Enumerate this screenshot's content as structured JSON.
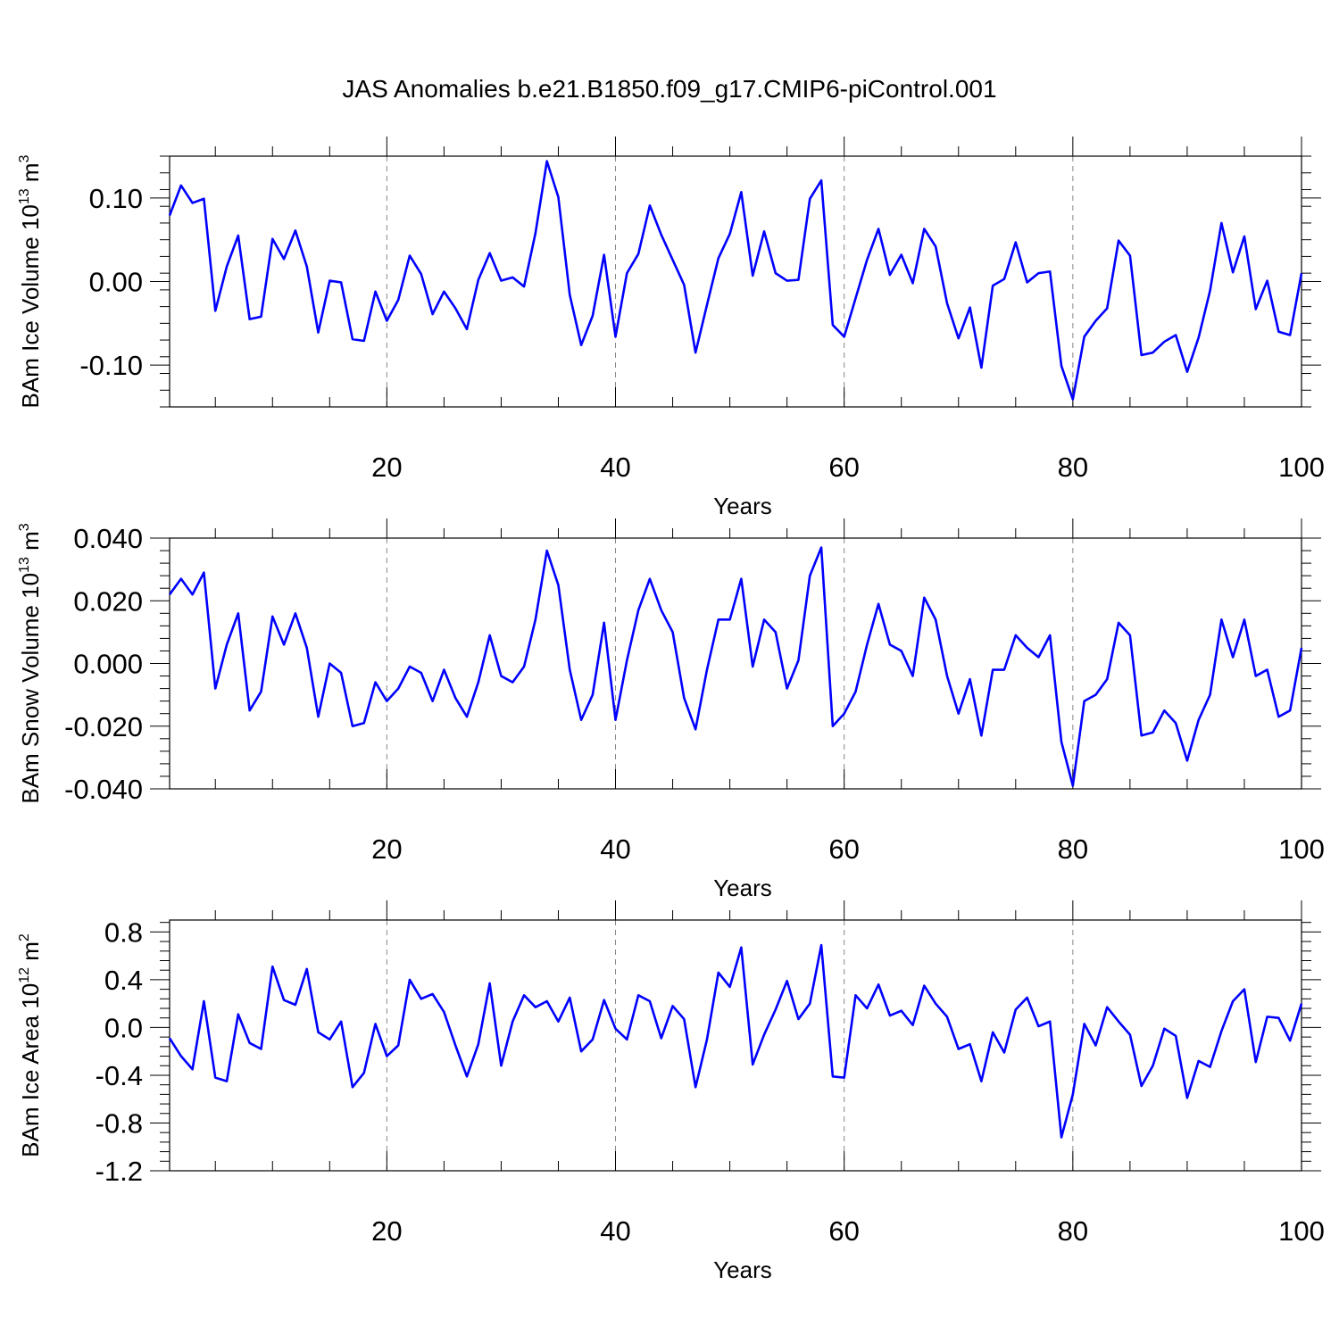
{
  "title": "JAS Anomalies b.e21.B1850.f09_g17.CMIP6-piControl.001",
  "style": {
    "line_color": "#0000ff",
    "axis_color": "#000000",
    "grid_color": "#888888"
  },
  "chart_data": [
    {
      "type": "line",
      "ylabel": "BAm Ice Volume 10",
      "ylabel_exp": "13",
      "ylabel_unit": " m",
      "ylabel_unit_exp": "3",
      "xlabel": "Years",
      "xlim": [
        1,
        100
      ],
      "ylim": [
        -0.15,
        0.15
      ],
      "yticks": [
        -0.1,
        0.0,
        0.1
      ],
      "ytick_labels": [
        "-0.10",
        "0.00",
        "0.10"
      ],
      "yminor_step": 0.02,
      "xticks": [
        20,
        40,
        60,
        80,
        100
      ],
      "xtick_labels": [
        "20",
        "40",
        "60",
        "80",
        "100"
      ],
      "xgrid": [
        20,
        40,
        60,
        80
      ],
      "series": [
        {
          "name": "BAm Ice Volume",
          "x_start": 1,
          "values": [
            0.079,
            0.115,
            0.094,
            0.099,
            -0.035,
            0.018,
            0.055,
            -0.045,
            -0.042,
            0.051,
            0.027,
            0.061,
            0.018,
            -0.061,
            0.001,
            -0.001,
            -0.069,
            -0.071,
            -0.012,
            -0.047,
            -0.022,
            0.031,
            0.009,
            -0.039,
            -0.012,
            -0.032,
            -0.057,
            0.002,
            0.034,
            0.001,
            0.005,
            -0.006,
            0.058,
            0.144,
            0.101,
            -0.016,
            -0.076,
            -0.041,
            0.032,
            -0.066,
            0.01,
            0.033,
            0.091,
            0.056,
            0.026,
            -0.004,
            -0.085,
            -0.028,
            0.028,
            0.057,
            0.107,
            0.007,
            0.06,
            0.01,
            0.001,
            0.002,
            0.099,
            0.121,
            -0.052,
            -0.066,
            -0.02,
            0.026,
            0.063,
            0.008,
            0.032,
            -0.002,
            0.063,
            0.042,
            -0.026,
            -0.068,
            -0.031,
            -0.103,
            -0.005,
            0.003,
            0.047,
            -0.001,
            0.01,
            0.012,
            -0.101,
            -0.141,
            -0.066,
            -0.047,
            -0.032,
            0.049,
            0.031,
            -0.088,
            -0.085,
            -0.072,
            -0.064,
            -0.108,
            -0.067,
            -0.011,
            0.07,
            0.011,
            0.054,
            -0.033,
            0.001,
            -0.06,
            -0.064,
            0.01
          ]
        }
      ]
    },
    {
      "type": "line",
      "ylabel": "BAm Snow Volume 10",
      "ylabel_exp": "13",
      "ylabel_unit": " m",
      "ylabel_unit_exp": "3",
      "xlabel": "Years",
      "xlim": [
        1,
        100
      ],
      "ylim": [
        -0.04,
        0.04
      ],
      "yticks": [
        -0.04,
        -0.02,
        0.0,
        0.02,
        0.04
      ],
      "ytick_labels": [
        "-0.040",
        "-0.020",
        "0.000",
        "0.020",
        "0.040"
      ],
      "yminor_step": 0.004,
      "xticks": [
        20,
        40,
        60,
        80,
        100
      ],
      "xtick_labels": [
        "20",
        "40",
        "60",
        "80",
        "100"
      ],
      "xgrid": [
        20,
        40,
        60,
        80
      ],
      "series": [
        {
          "name": "BAm Snow Volume",
          "x_start": 1,
          "values": [
            0.022,
            0.027,
            0.022,
            0.029,
            -0.008,
            0.006,
            0.016,
            -0.015,
            -0.009,
            0.015,
            0.006,
            0.016,
            0.005,
            -0.017,
            0.0,
            -0.003,
            -0.02,
            -0.019,
            -0.006,
            -0.012,
            -0.008,
            -0.001,
            -0.003,
            -0.012,
            -0.002,
            -0.011,
            -0.017,
            -0.006,
            0.009,
            -0.004,
            -0.006,
            -0.001,
            0.014,
            0.036,
            0.025,
            -0.002,
            -0.018,
            -0.01,
            0.013,
            -0.018,
            0.001,
            0.017,
            0.027,
            0.017,
            0.01,
            -0.011,
            -0.021,
            -0.002,
            0.014,
            0.014,
            0.027,
            -0.001,
            0.014,
            0.01,
            -0.008,
            0.001,
            0.028,
            0.037,
            -0.02,
            -0.016,
            -0.009,
            0.006,
            0.019,
            0.006,
            0.004,
            -0.004,
            0.021,
            0.014,
            -0.004,
            -0.016,
            -0.005,
            -0.023,
            -0.002,
            -0.002,
            0.009,
            0.005,
            0.002,
            0.009,
            -0.025,
            -0.039,
            -0.012,
            -0.01,
            -0.005,
            0.013,
            0.009,
            -0.023,
            -0.022,
            -0.015,
            -0.019,
            -0.031,
            -0.018,
            -0.01,
            0.014,
            0.002,
            0.014,
            -0.004,
            -0.002,
            -0.017,
            -0.015,
            0.005
          ]
        }
      ]
    },
    {
      "type": "line",
      "ylabel": "BAm Ice Area 10",
      "ylabel_exp": "12",
      "ylabel_unit": " m",
      "ylabel_unit_exp": "2",
      "xlabel": "Years",
      "xlim": [
        1,
        100
      ],
      "ylim": [
        -1.2,
        0.9
      ],
      "yticks": [
        -1.2,
        -0.8,
        -0.4,
        0.0,
        0.4,
        0.8
      ],
      "ytick_labels": [
        "-1.2",
        "-0.8",
        "-0.4",
        "0.0",
        "0.4",
        "0.8"
      ],
      "yminor_step": 0.08,
      "xticks": [
        20,
        40,
        60,
        80,
        100
      ],
      "xtick_labels": [
        "20",
        "40",
        "60",
        "80",
        "100"
      ],
      "xgrid": [
        20,
        40,
        60,
        80
      ],
      "series": [
        {
          "name": "BAm Ice Area",
          "x_start": 1,
          "values": [
            -0.09,
            -0.24,
            -0.35,
            0.22,
            -0.42,
            -0.45,
            0.11,
            -0.13,
            -0.18,
            0.51,
            0.23,
            0.19,
            0.49,
            -0.04,
            -0.1,
            0.05,
            -0.5,
            -0.38,
            0.03,
            -0.24,
            -0.15,
            0.4,
            0.24,
            0.28,
            0.13,
            -0.15,
            -0.41,
            -0.14,
            0.37,
            -0.32,
            0.05,
            0.27,
            0.17,
            0.22,
            0.05,
            0.25,
            -0.2,
            -0.1,
            0.23,
            -0.01,
            -0.1,
            0.27,
            0.22,
            -0.09,
            0.18,
            0.07,
            -0.5,
            -0.1,
            0.46,
            0.34,
            0.67,
            -0.31,
            -0.06,
            0.15,
            0.39,
            0.07,
            0.2,
            0.69,
            -0.41,
            -0.42,
            0.27,
            0.16,
            0.36,
            0.1,
            0.14,
            0.02,
            0.35,
            0.2,
            0.09,
            -0.18,
            -0.14,
            -0.45,
            -0.04,
            -0.21,
            0.15,
            0.25,
            0.01,
            0.05,
            -0.92,
            -0.56,
            0.03,
            -0.15,
            0.17,
            0.05,
            -0.06,
            -0.49,
            -0.32,
            -0.01,
            -0.07,
            -0.59,
            -0.28,
            -0.33,
            -0.03,
            0.22,
            0.32,
            -0.29,
            0.09,
            0.08,
            -0.11,
            0.2
          ]
        }
      ]
    }
  ]
}
